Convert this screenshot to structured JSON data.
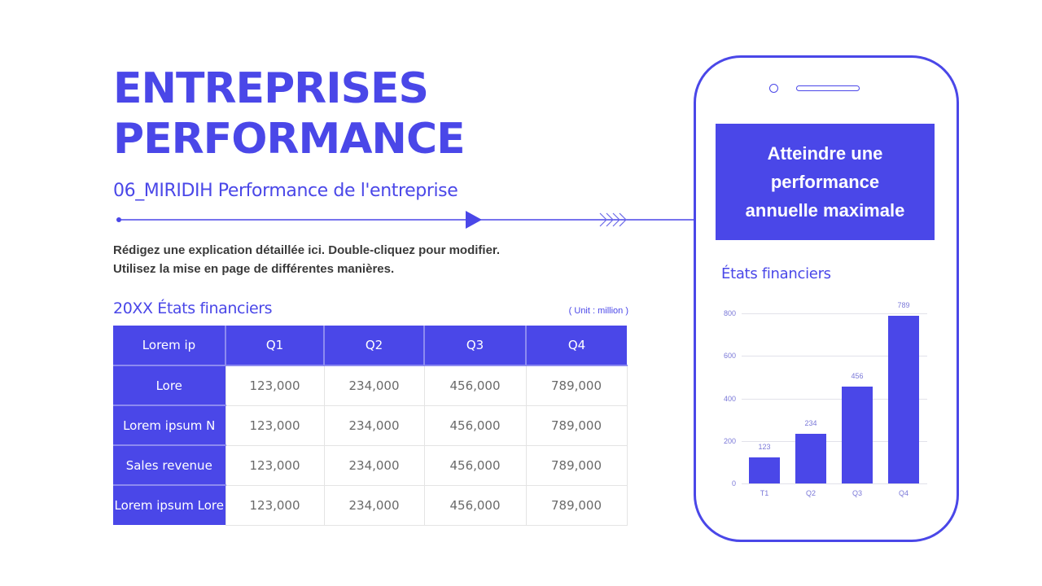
{
  "header": {
    "title_line1": "ENTREPRISES",
    "title_line2": "PERFORMANCE",
    "subtitle": "06_MIRIDIH Performance de l'entreprise"
  },
  "description": {
    "line1": "Rédigez une explication détaillée ici. Double-cliquez pour modifier.",
    "line2": "Utilisez la mise en page de différentes manières."
  },
  "table": {
    "title": "20XX États financiers",
    "unit": "( Unit : million )",
    "columns": [
      "Lorem ip",
      "Q1",
      "Q2",
      "Q3",
      "Q4"
    ],
    "rows": [
      {
        "label": "Lore",
        "values": [
          "123,000",
          "234,000",
          "456,000",
          "789,000"
        ]
      },
      {
        "label": "Lorem ipsum N",
        "values": [
          "123,000",
          "234,000",
          "456,000",
          "789,000"
        ]
      },
      {
        "label": "Sales revenue",
        "values": [
          "123,000",
          "234,000",
          "456,000",
          "789,000"
        ]
      },
      {
        "label": "Lorem ipsum Lore",
        "values": [
          "123,000",
          "234,000",
          "456,000",
          "789,000"
        ]
      }
    ]
  },
  "phone": {
    "callout_line1": "Atteindre une",
    "callout_line2": "performance",
    "callout_line3": "annuelle maximale",
    "chart_title": "États financiers"
  },
  "colors": {
    "accent": "#4a47e8",
    "body_text": "#3a3a3a",
    "cell_text": "#6a6a6a",
    "axis_text": "#7a78d8",
    "grid": "#e2e2ea"
  },
  "chart_data": {
    "type": "bar",
    "title": "États financiers",
    "categories": [
      "T1",
      "Q2",
      "Q3",
      "Q4"
    ],
    "values": [
      123,
      234,
      456,
      789
    ],
    "data_labels": [
      "123",
      "234",
      "456",
      "789"
    ],
    "xlabel": "",
    "ylabel": "",
    "ylim": [
      0,
      800
    ],
    "yticks": [
      0,
      200,
      400,
      600,
      800
    ],
    "grid": true,
    "legend": null
  }
}
